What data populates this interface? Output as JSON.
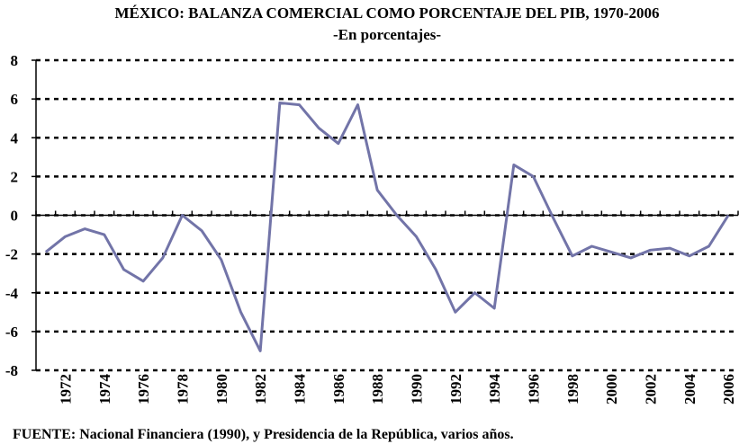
{
  "chart_data": {
    "type": "line",
    "title": "MÉXICO: BALANZA COMERCIAL COMO PORCENTAJE DEL PIB, 1970-2006",
    "subtitle": "-En porcentajes-",
    "source": "FUENTE:  Nacional Financiera (1990), y Presidencia de la República, varios años.",
    "categories": [
      null,
      "1972",
      null,
      "1974",
      null,
      "1976",
      null,
      "1978",
      null,
      "1980",
      null,
      "1982",
      null,
      "1984",
      null,
      "1986",
      null,
      "1988",
      null,
      "1990",
      null,
      "1992",
      null,
      "1994",
      null,
      "1996",
      null,
      "1998",
      null,
      "2000",
      null,
      "2002",
      null,
      "2004",
      null,
      "2006"
    ],
    "series": [
      {
        "color": "#7274a8",
        "values": [
          -1.9,
          -1.1,
          -0.7,
          -1.0,
          -2.8,
          -3.4,
          -2.2,
          0.0,
          -0.8,
          -2.3,
          -5.0,
          -7.0,
          5.8,
          5.7,
          4.5,
          3.7,
          5.7,
          1.3,
          0.0,
          -1.1,
          -2.8,
          -5.0,
          -4.0,
          -4.8,
          2.6,
          2.0,
          -0.1,
          -2.1,
          -1.6,
          -1.9,
          -2.2,
          -1.8,
          -1.7,
          -2.1,
          -1.6,
          0.0
        ]
      }
    ],
    "ylim": [
      -8,
      8
    ],
    "yticks": [
      -8,
      -6,
      -4,
      -2,
      0,
      2,
      4,
      6,
      8
    ],
    "grid": true
  }
}
